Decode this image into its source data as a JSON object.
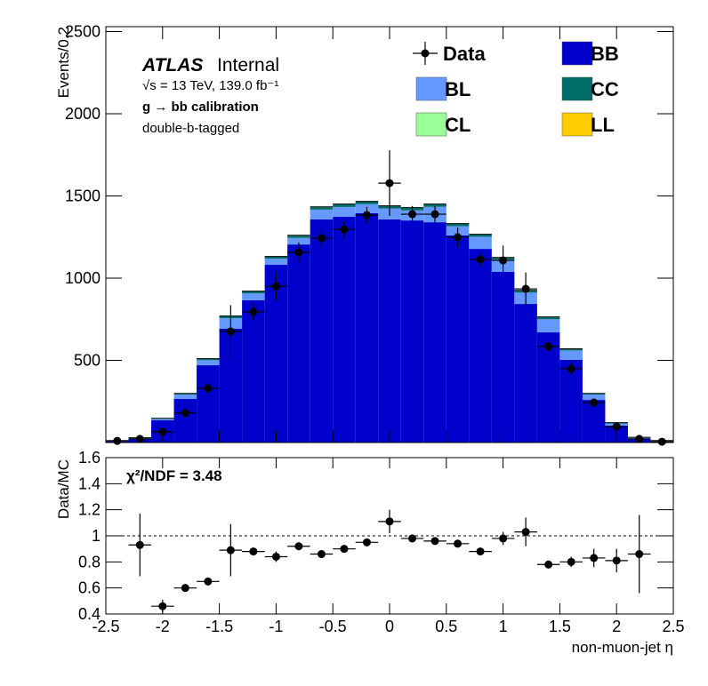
{
  "chart_data": [
    {
      "type": "stacked_histogram",
      "y_label": "Events/0.2",
      "atlas_label": "ATLAS",
      "status": "Internal",
      "energy_lumi": "√s = 13 TeV, 139.0 fb⁻¹",
      "process": "g → bb calibration",
      "selection": "double-b-tagged",
      "bins": [
        -2.5,
        -2.3,
        -2.1,
        -1.9,
        -1.7,
        -1.5,
        -1.3,
        -1.1,
        -0.9,
        -0.7,
        -0.5,
        -0.3,
        -0.1,
        0.1,
        0.3,
        0.5,
        0.7,
        0.9,
        1.1,
        1.3,
        1.5,
        1.7,
        1.9,
        2.1,
        2.3,
        2.5
      ],
      "xlim": [
        -2.5,
        2.5
      ],
      "ylim": [
        0,
        2530
      ],
      "yticks": [
        500,
        1000,
        1500,
        2000,
        2500
      ],
      "series": [
        {
          "name": "BB",
          "color": "#0000cc",
          "values": [
            7,
            20,
            135,
            265,
            470,
            692,
            865,
            1081,
            1205,
            1357,
            1373,
            1395,
            1357,
            1351,
            1340,
            1260,
            1178,
            1038,
            843,
            670,
            503,
            259,
            103,
            24,
            7
          ]
        },
        {
          "name": "BL",
          "color": "#6699ff",
          "values": [
            2,
            5,
            8,
            27,
            31,
            64,
            42,
            37,
            40,
            60,
            60,
            55,
            66,
            61,
            94,
            56,
            74,
            74,
            69,
            80,
            57,
            33,
            13,
            5,
            2
          ]
        },
        {
          "name": "CC",
          "color": "#006d68",
          "values": [
            1,
            2,
            2,
            5,
            7,
            12,
            12,
            12,
            14,
            15,
            16,
            15,
            15,
            15,
            15,
            14,
            13,
            12,
            12,
            12,
            8,
            5,
            3,
            1,
            1
          ]
        },
        {
          "name": "CL",
          "color": "#99ff99",
          "values": [
            1,
            1,
            1,
            1,
            1,
            1,
            1,
            1,
            1,
            1,
            1,
            1,
            1,
            1,
            1,
            1,
            1,
            1,
            1,
            1,
            1,
            1,
            1,
            1,
            1
          ]
        },
        {
          "name": "LL",
          "color": "#ffcc00",
          "values": [
            1,
            1,
            1,
            1,
            1,
            1,
            1,
            1,
            1,
            1,
            1,
            1,
            1,
            1,
            1,
            1,
            1,
            1,
            1,
            1,
            1,
            1,
            1,
            1,
            1
          ]
        }
      ],
      "data": {
        "name": "Data",
        "color": "#000000",
        "values": [
          10,
          22,
          65,
          180,
          330,
          676,
          795,
          951,
          1157,
          1243,
          1297,
          1384,
          1578,
          1389,
          1389,
          1249,
          1114,
          1108,
          935,
          584,
          449,
          243,
          97,
          22,
          5
        ],
        "errors": [
          5,
          8,
          15,
          20,
          30,
          160,
          50,
          90,
          60,
          60,
          50,
          50,
          200,
          50,
          50,
          60,
          40,
          90,
          100,
          30,
          40,
          25,
          15,
          8,
          5
        ]
      }
    },
    {
      "type": "ratio",
      "x_label": "non-muon-jet η",
      "y_label": "Data/MC",
      "annotation": "χ²/NDF = 3.48",
      "xlim": [
        -2.5,
        2.5
      ],
      "xticks": [
        -2.5,
        -2,
        -1.5,
        -1,
        -0.5,
        0,
        0.5,
        1,
        1.5,
        2,
        2.5
      ],
      "ylim": [
        0.4,
        1.6
      ],
      "yticks": [
        0.4,
        0.6,
        0.8,
        1,
        1.2,
        1.4,
        1.6
      ],
      "reference_line": 1,
      "values": [
        null,
        0.93,
        0.46,
        0.6,
        0.65,
        0.89,
        0.88,
        0.84,
        0.92,
        0.86,
        0.9,
        0.95,
        1.11,
        0.98,
        0.96,
        0.94,
        0.88,
        0.98,
        1.03,
        0.78,
        0.8,
        0.83,
        0.81,
        0.86,
        null
      ],
      "errors": [
        null,
        0.24,
        0.05,
        0.03,
        0.03,
        0.2,
        0.03,
        0.04,
        0.03,
        0.03,
        0.02,
        0.03,
        0.09,
        0.03,
        0.02,
        0.03,
        0.02,
        0.05,
        0.11,
        0.03,
        0.04,
        0.07,
        0.09,
        0.3,
        null
      ]
    }
  ]
}
